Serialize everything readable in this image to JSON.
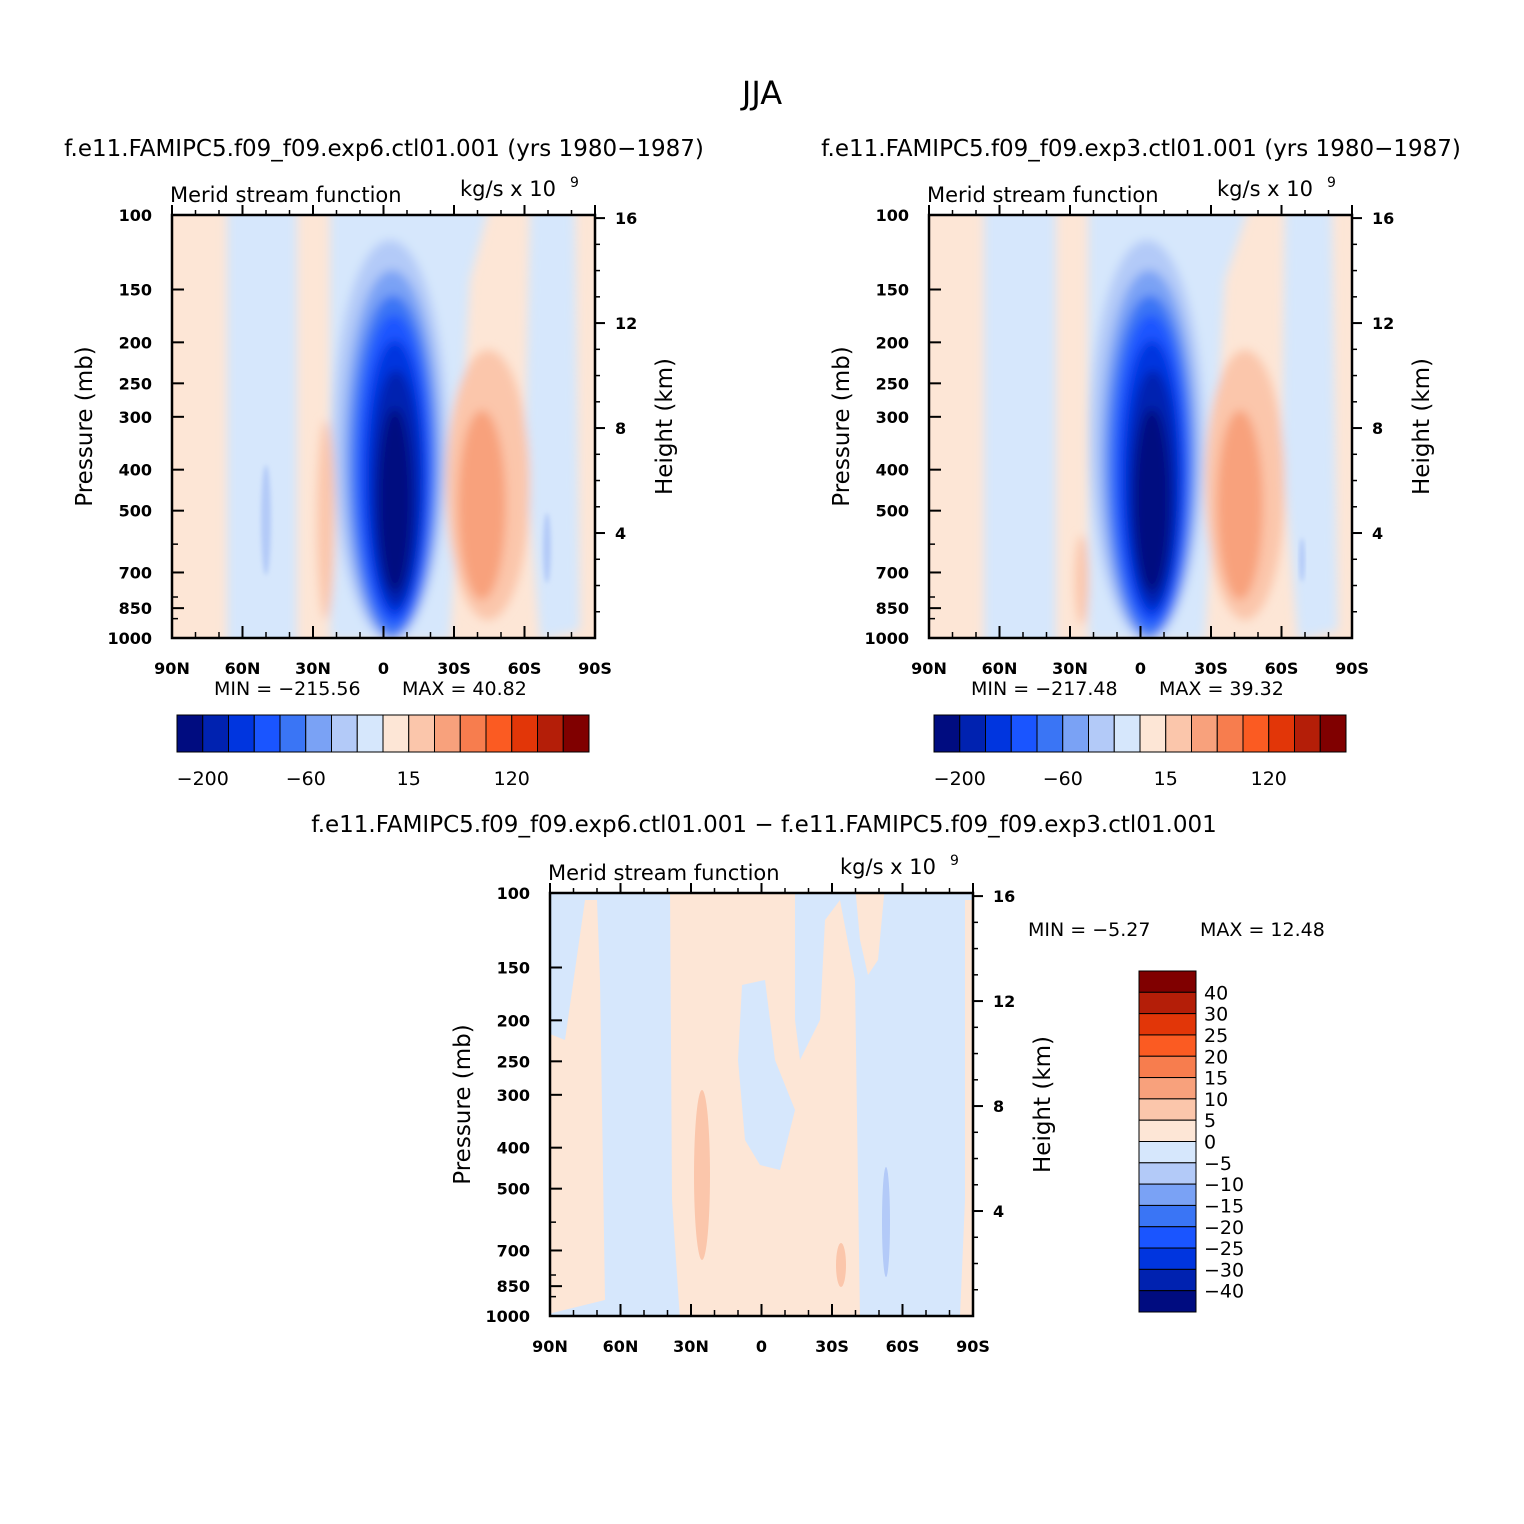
{
  "figure": {
    "title": "JJA"
  },
  "colors": {
    "abs_levels": [
      "#000c80",
      "#0022b0",
      "#0035df",
      "#1a55ff",
      "#3a75f5",
      "#7aa2f5",
      "#b3caf8",
      "#d6e7fc",
      "#fde6d6",
      "#fbc6ab",
      "#f8a17c",
      "#f77d4e",
      "#fb5b22",
      "#e23608",
      "#b41e08",
      "#800000"
    ],
    "diff_levels": [
      "#000c80",
      "#0022b0",
      "#0035df",
      "#1a55ff",
      "#3a75f5",
      "#7aa2f5",
      "#b3caf8",
      "#d6e7fc",
      "#fde6d6",
      "#fbc6ab",
      "#f8a17c",
      "#f77d4e",
      "#fb5b22",
      "#e23608",
      "#b41e08",
      "#800000"
    ]
  },
  "chart_data": [
    {
      "type": "heatmap",
      "panel": "top-left",
      "case_title": "f.e11.FAMIPC5.f09_f09.exp6.ctl01.001 (yrs 1980-1987)",
      "left_string": "Merid stream function",
      "right_string": "kg/s x 10",
      "right_exp": "9",
      "xlabel": "",
      "ylabel": "Pressure (mb)",
      "y2label": "Height (km)",
      "x_ticks": [
        "90N",
        "60N",
        "30N",
        "0",
        "30S",
        "60S",
        "90S"
      ],
      "xlim": [
        90,
        -90
      ],
      "y_ticks": [
        100,
        150,
        200,
        250,
        300,
        400,
        500,
        700,
        850,
        1000
      ],
      "ylim": [
        1000,
        100
      ],
      "y_scale": "log",
      "y2_ticks": [
        4,
        8,
        12,
        16
      ],
      "min": -215.56,
      "max": 40.82,
      "min_label": "MIN = -215.56",
      "max_label": "MAX = 40.82",
      "colorbar": {
        "orientation": "horizontal",
        "labels": [
          "-200",
          "-60",
          "15",
          "120"
        ]
      },
      "features": [
        {
          "lat": 0,
          "p": 450,
          "value": -215.56
        },
        {
          "lat": -40,
          "p": 450,
          "value": 40.82
        }
      ]
    },
    {
      "type": "heatmap",
      "panel": "top-right",
      "case_title": "f.e11.FAMIPC5.f09_f09.exp3.ctl01.001 (yrs 1980-1987)",
      "left_string": "Merid stream function",
      "right_string": "kg/s x 10",
      "right_exp": "9",
      "xlabel": "",
      "ylabel": "Pressure (mb)",
      "y2label": "Height (km)",
      "x_ticks": [
        "90N",
        "60N",
        "30N",
        "0",
        "30S",
        "60S",
        "90S"
      ],
      "xlim": [
        90,
        -90
      ],
      "y_ticks": [
        100,
        150,
        200,
        250,
        300,
        400,
        500,
        700,
        850,
        1000
      ],
      "ylim": [
        1000,
        100
      ],
      "y_scale": "log",
      "y2_ticks": [
        4,
        8,
        12,
        16
      ],
      "min": -217.48,
      "max": 39.32,
      "min_label": "MIN = -217.48",
      "max_label": "MAX = 39.32",
      "colorbar": {
        "orientation": "horizontal",
        "labels": [
          "-200",
          "-60",
          "15",
          "120"
        ]
      },
      "features": [
        {
          "lat": 0,
          "p": 450,
          "value": -217.48
        },
        {
          "lat": -40,
          "p": 450,
          "value": 39.32
        }
      ]
    },
    {
      "type": "heatmap",
      "panel": "bottom",
      "case_title": "f.e11.FAMIPC5.f09_f09.exp6.ctl01.001 - f.e11.FAMIPC5.f09_f09.exp3.ctl01.001",
      "left_string": "Merid stream function",
      "right_string": "kg/s x 10",
      "right_exp": "9",
      "xlabel": "",
      "ylabel": "Pressure (mb)",
      "y2label": "Height (km)",
      "x_ticks": [
        "90N",
        "60N",
        "30N",
        "0",
        "30S",
        "60S",
        "90S"
      ],
      "xlim": [
        90,
        -90
      ],
      "y_ticks": [
        100,
        150,
        200,
        250,
        300,
        400,
        500,
        700,
        850,
        1000
      ],
      "ylim": [
        1000,
        100
      ],
      "y_scale": "log",
      "y2_ticks": [
        4,
        8,
        12,
        16
      ],
      "min": -5.27,
      "max": 12.48,
      "min_label": "MIN = -5.27",
      "max_label": "MAX = 12.48",
      "colorbar": {
        "orientation": "vertical",
        "labels": [
          "40",
          "30",
          "25",
          "20",
          "15",
          "10",
          "5",
          "0",
          "-5",
          "-10",
          "-15",
          "-20",
          "-25",
          "-30",
          "-40"
        ]
      }
    }
  ]
}
